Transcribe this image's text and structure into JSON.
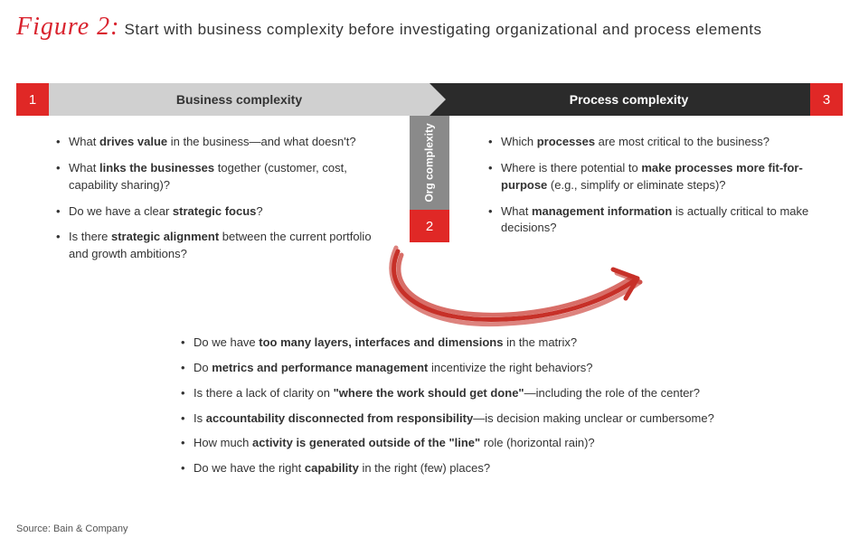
{
  "figure": {
    "label": "Figure 2:",
    "caption": "Start with business complexity before investigating organizational and process elements"
  },
  "colors": {
    "accent_red": "#e02826",
    "title_red": "#d9232e",
    "bar_light": "#d0d0d0",
    "bar_dark": "#2b2b2b",
    "org_gray": "#8a8a8a",
    "text": "#333333",
    "background": "#ffffff"
  },
  "header": {
    "left": {
      "num": "1",
      "title": "Business complexity"
    },
    "right": {
      "num": "3",
      "title": "Process complexity"
    }
  },
  "org": {
    "num": "2",
    "label": "Org complexity"
  },
  "business_bullets": [
    "What <b>drives value</b> in the business—and what doesn't?",
    "What <b>links the businesses</b> together (customer, cost, capability sharing)?",
    "Do we have a clear <b>strategic focus</b>?",
    "Is there <b>strategic alignment</b> between the current portfolio and growth ambitions?"
  ],
  "process_bullets": [
    "Which <b>processes</b> are most critical to the business?",
    "Where is there potential to <b>make processes more fit-for-purpose</b> (e.g., simplify or eliminate steps)?",
    "What <b>management information</b> is actually critical to make decisions?"
  ],
  "org_bullets": [
    "Do we have <b>too many layers, interfaces and dimensions</b> in the matrix?",
    "Do <b>metrics and performance management</b> incentivize the right behaviors?",
    "Is there a lack of clarity on <b>\"where the work should get done\"</b>—including the role of the center?",
    "Is <b>accountability disconnected from responsibility</b>—is decision making unclear or cumbersome?",
    "How much <b>activity is generated outside of the \"line\"</b> role (horizontal rain)?",
    "Do we have the right <b>capability</b> in the right (few) places?"
  ],
  "source": "Source: Bain & Company",
  "swoosh": {
    "stroke": "#c73028",
    "stroke_width": 5
  }
}
